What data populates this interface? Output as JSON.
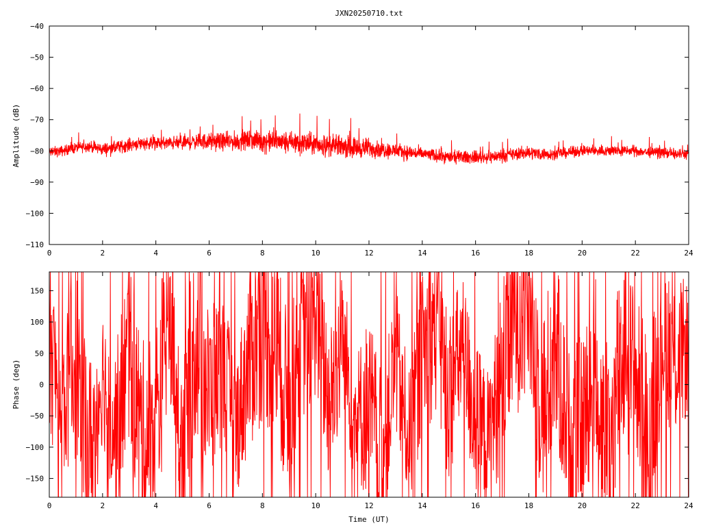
{
  "title": "JXN20250710.txt",
  "colors": {
    "trace": "#ff0000",
    "axis": "#000000",
    "background": "#ffffff"
  },
  "chart_data": [
    {
      "type": "line",
      "title": "",
      "xlabel": "",
      "ylabel": "Amplitude (dB)",
      "xlim": [
        0,
        24
      ],
      "ylim": [
        -110,
        -40
      ],
      "x_ticks": [
        0,
        2,
        4,
        6,
        8,
        10,
        12,
        14,
        16,
        18,
        20,
        22,
        24
      ],
      "y_ticks": [
        -110,
        -100,
        -90,
        -80,
        -70,
        -60,
        -50,
        -40
      ],
      "x_tick_labels": [
        "0",
        "2",
        "4",
        "6",
        "8",
        "10",
        "12",
        "14",
        "16",
        "18",
        "20",
        "22",
        "24"
      ],
      "y_tick_labels": [
        "−110",
        "−100",
        "−90",
        "−80",
        "−70",
        "−60",
        "−50",
        "−40"
      ],
      "grid": false,
      "series": [
        {
          "x": [
            0,
            0.5,
            1,
            1.5,
            2,
            2.5,
            3,
            3.5,
            4,
            4.5,
            5,
            5.5,
            6,
            6.5,
            7,
            7.5,
            8,
            8.5,
            9,
            9.5,
            10,
            10.5,
            11,
            11.5,
            12,
            12.5,
            13,
            13.5,
            14,
            14.5,
            15,
            15.5,
            16,
            16.5,
            17,
            17.5,
            18,
            18.5,
            19,
            19.5,
            20,
            20.5,
            21,
            21.5,
            22,
            22.5,
            23,
            23.5,
            24
          ],
          "y": [
            -80.5,
            -80,
            -79,
            -78.5,
            -79.5,
            -79,
            -78,
            -77.5,
            -77.5,
            -77.5,
            -77.5,
            -77,
            -77,
            -77,
            -77,
            -76.5,
            -77,
            -77,
            -77.5,
            -77.5,
            -78,
            -78.5,
            -78.5,
            -79,
            -79,
            -79.5,
            -80,
            -80.5,
            -81,
            -81.5,
            -82,
            -82,
            -82,
            -82,
            -81.5,
            -81,
            -80.5,
            -81,
            -81,
            -80.5,
            -80,
            -80,
            -80,
            -80,
            -80,
            -80.5,
            -80.5,
            -81,
            -81
          ],
          "spread": [
            2.5,
            2.5,
            2.5,
            2.5,
            3,
            3,
            3,
            3,
            3,
            3,
            3.5,
            3.5,
            4,
            4,
            4.5,
            4.5,
            5,
            5,
            5.5,
            5.5,
            5,
            5,
            5,
            5,
            4.5,
            4,
            3.5,
            3.5,
            3,
            3,
            3,
            3,
            3,
            3,
            3,
            3,
            3,
            3,
            2.5,
            2.5,
            2.5,
            2.5,
            2.5,
            2.5,
            2.5,
            2.5,
            2.5,
            2.5,
            2.5
          ]
        }
      ]
    },
    {
      "type": "line",
      "title": "",
      "xlabel": "Time (UT)",
      "ylabel": "Phase (deg)",
      "xlim": [
        0,
        24
      ],
      "ylim": [
        -180,
        180
      ],
      "x_ticks": [
        0,
        2,
        4,
        6,
        8,
        10,
        12,
        14,
        16,
        18,
        20,
        22,
        24
      ],
      "y_ticks": [
        -150,
        -100,
        -50,
        0,
        50,
        100,
        150
      ],
      "x_tick_labels": [
        "0",
        "2",
        "4",
        "6",
        "8",
        "10",
        "12",
        "14",
        "16",
        "18",
        "20",
        "22",
        "24"
      ],
      "y_tick_labels": [
        "−150",
        "−100",
        "−50",
        "0",
        "50",
        "100",
        "150"
      ],
      "grid": false,
      "series": [
        {
          "x": [
            0,
            0.5,
            1,
            1.5,
            2,
            2.5,
            3,
            3.5,
            4,
            4.5,
            5,
            5.5,
            6,
            6.5,
            7,
            7.5,
            8,
            8.5,
            9,
            9.5,
            10,
            10.5,
            11,
            11.5,
            12,
            12.5,
            13,
            13.5,
            14,
            14.5,
            15,
            15.5,
            16,
            16.5,
            17,
            17.5,
            18,
            18.5,
            19,
            19.5,
            20,
            20.5,
            21,
            21.5,
            22,
            22.5,
            23,
            23.5,
            24
          ],
          "y": [
            60,
            -40,
            40,
            -120,
            20,
            -80,
            60,
            -100,
            -60,
            120,
            -90,
            80,
            -20,
            30,
            -70,
            40,
            110,
            60,
            -40,
            80,
            130,
            -30,
            70,
            -60,
            -30,
            -120,
            40,
            -90,
            50,
            100,
            -20,
            60,
            -60,
            -90,
            20,
            120,
            140,
            -40,
            60,
            -80,
            -60,
            30,
            -120,
            60,
            10,
            -90,
            90,
            40,
            60
          ],
          "spread": [
            140,
            110,
            160,
            170,
            110,
            140,
            150,
            170,
            170,
            150,
            140,
            170,
            140,
            120,
            110,
            150,
            170,
            160,
            140,
            140,
            150,
            130,
            120,
            110,
            150,
            130,
            120,
            110,
            130,
            150,
            140,
            120,
            130,
            110,
            150,
            170,
            170,
            160,
            150,
            140,
            140,
            150,
            170,
            160,
            150,
            160,
            140,
            130,
            110
          ]
        }
      ]
    }
  ]
}
